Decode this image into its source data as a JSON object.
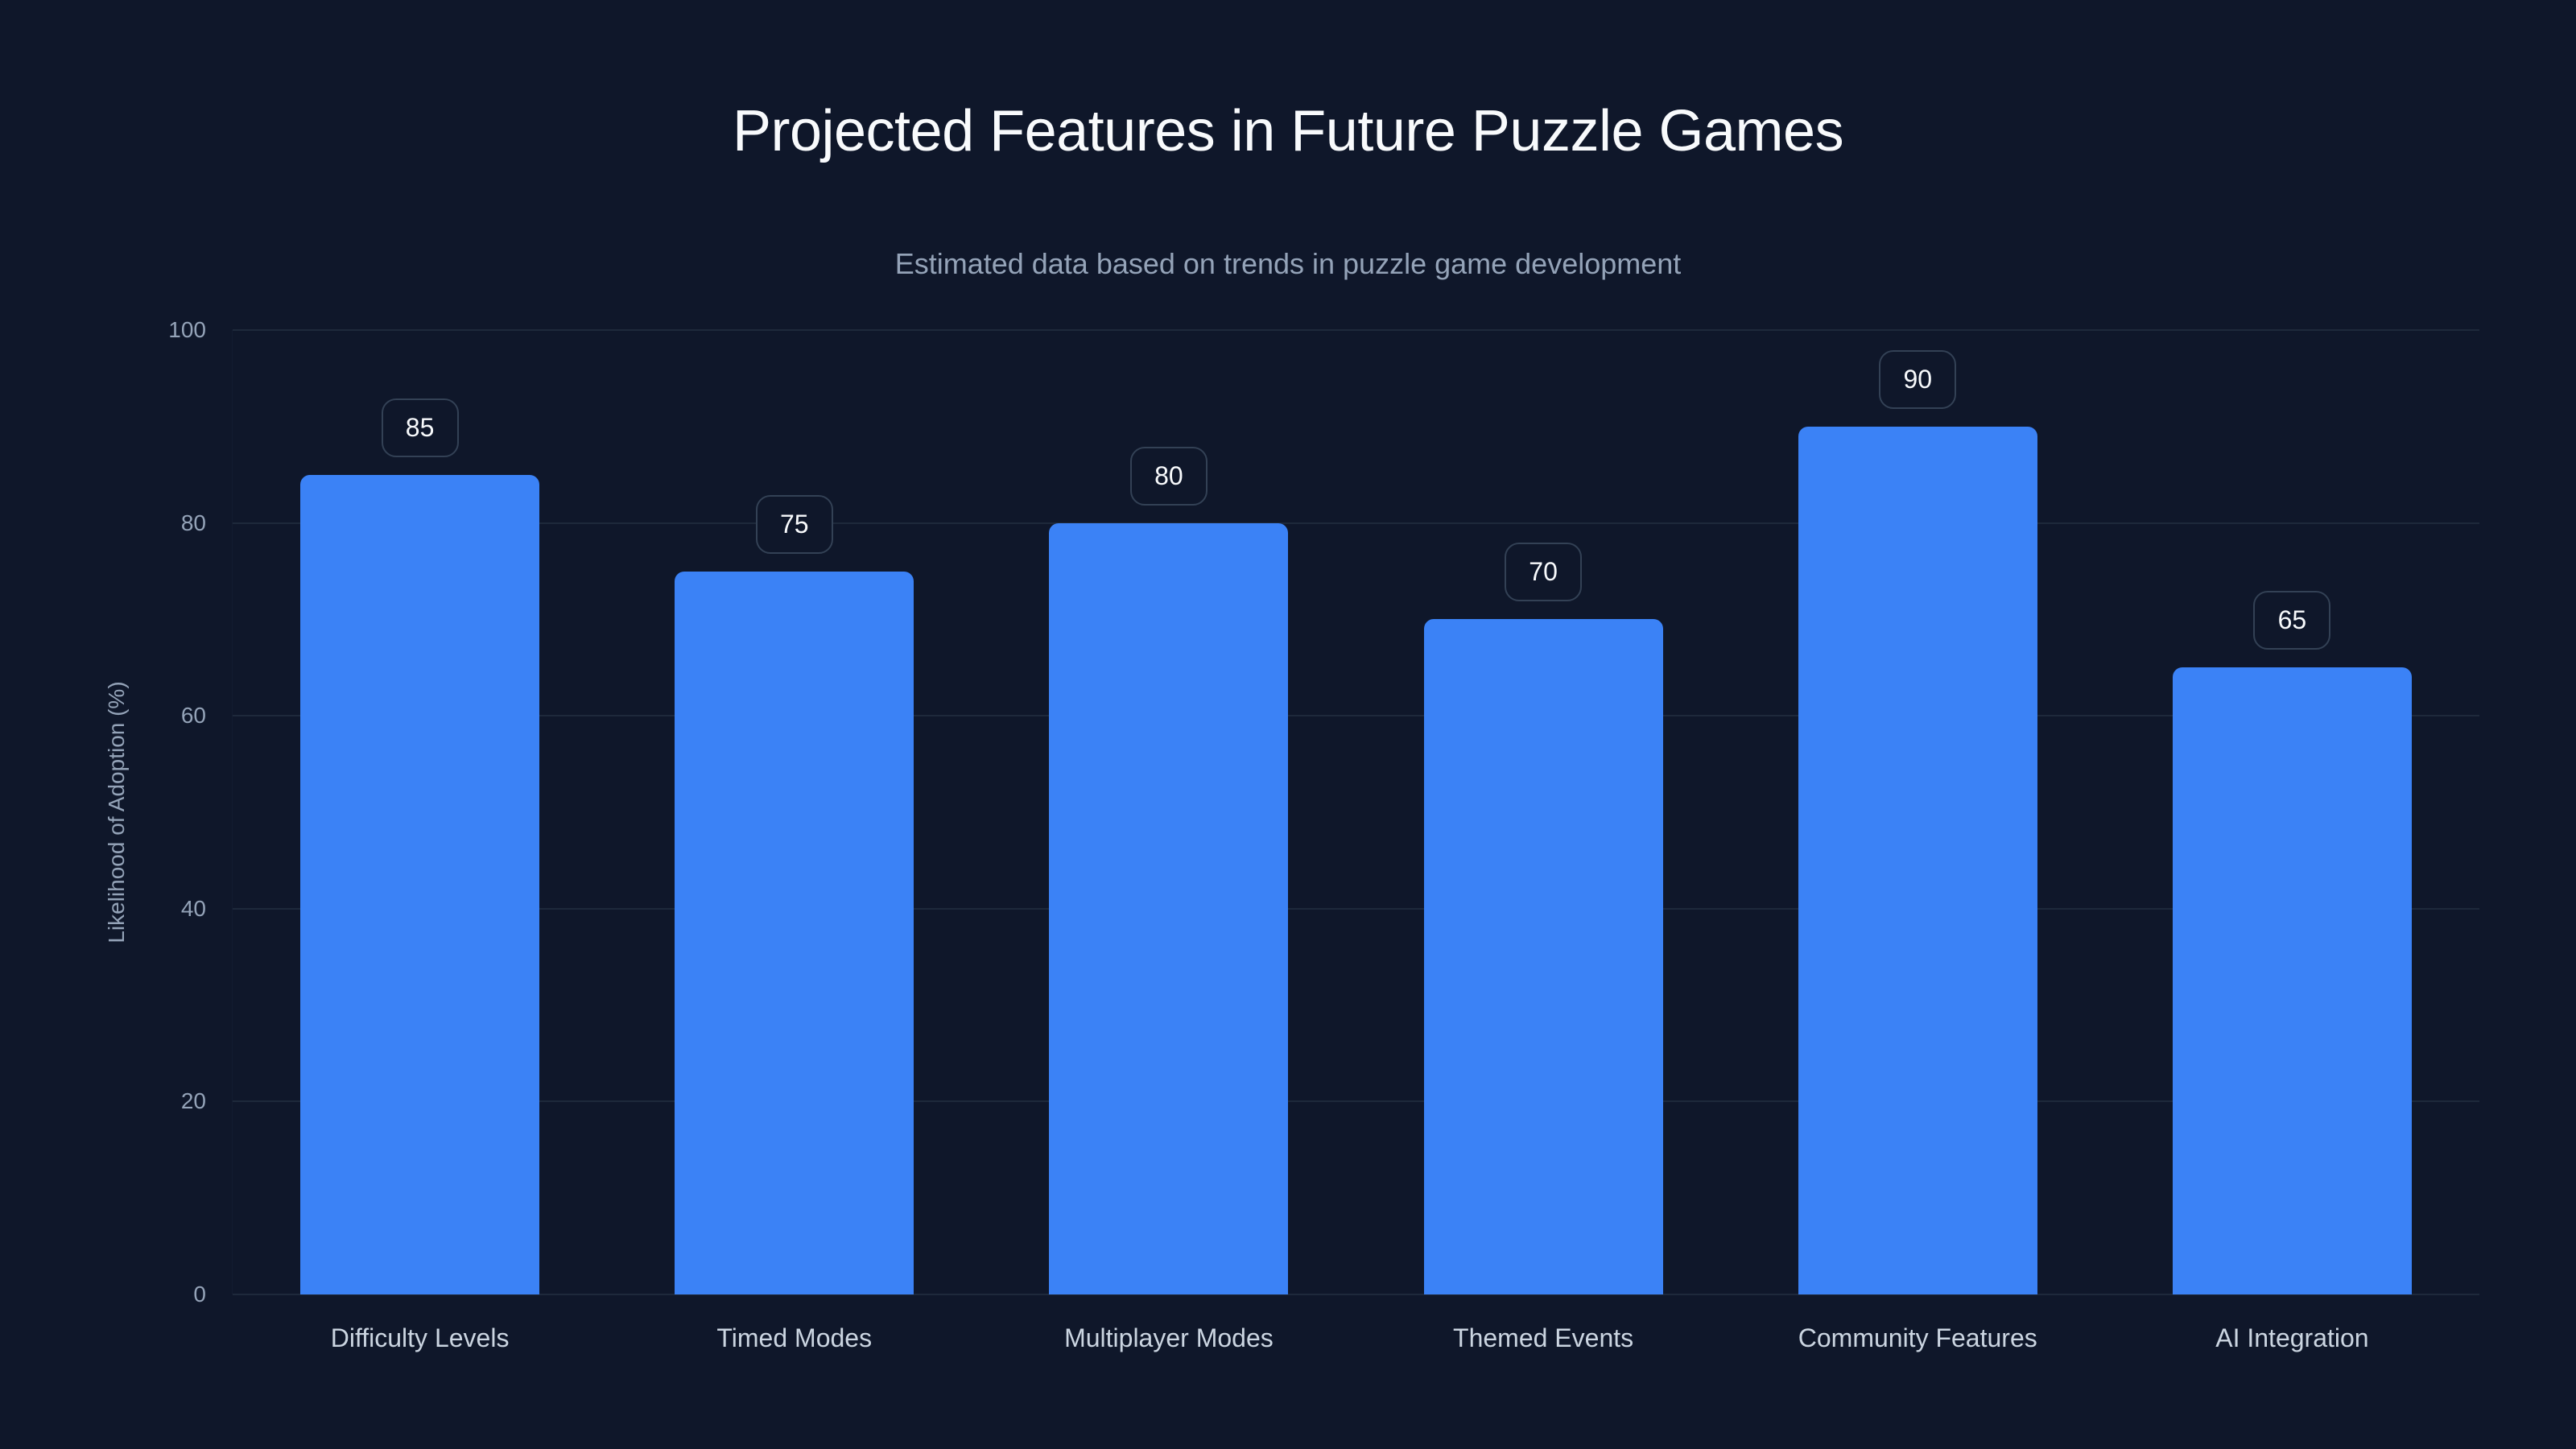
{
  "chart": {
    "title": "Projected Features in Future Puzzle Games",
    "subtitle": "Estimated data based on trends in puzzle game development",
    "ylabel": "Likelihood of Adoption (%)"
  },
  "colors": {
    "background": "#0f172a",
    "bar": "#3b82f6",
    "gridline": "#1e293b",
    "value_box_border": "#334155",
    "tick_text": "#94a3b8",
    "category_text": "#cbd5e1",
    "title_text": "#f8fafc"
  },
  "chart_data": {
    "type": "bar",
    "title": "Projected Features in Future Puzzle Games",
    "subtitle": "Estimated data based on trends in puzzle game development",
    "xlabel": "",
    "ylabel": "Likelihood of Adoption (%)",
    "ylim": [
      0,
      100
    ],
    "yticks": [
      0,
      20,
      40,
      60,
      80,
      100
    ],
    "grid": true,
    "legend": null,
    "data_labels": true,
    "categories": [
      "Difficulty Levels",
      "Timed Modes",
      "Multiplayer Modes",
      "Themed Events",
      "Community Features",
      "AI Integration"
    ],
    "values": [
      85,
      75,
      80,
      70,
      90,
      65
    ]
  }
}
